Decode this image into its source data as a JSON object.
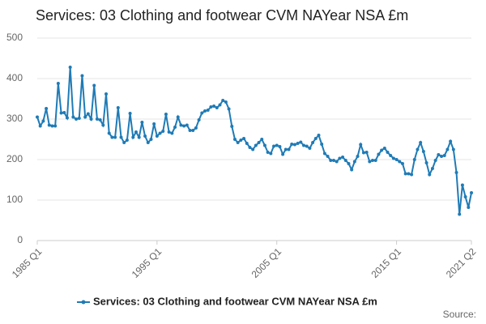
{
  "chart_data": {
    "type": "line",
    "title": "Services: 03 Clothing and footwear CVM NAYear NSA £m",
    "source": "Source:",
    "categories": [
      "1985 Q1",
      null,
      null,
      null,
      null,
      null,
      null,
      null,
      null,
      null,
      null,
      null,
      null,
      null,
      null,
      null,
      null,
      null,
      null,
      null,
      null,
      null,
      null,
      null,
      null,
      null,
      null,
      null,
      null,
      null,
      null,
      null,
      null,
      null,
      null,
      null,
      null,
      null,
      null,
      null,
      "1995 Q1",
      null,
      null,
      null,
      null,
      null,
      null,
      null,
      null,
      null,
      null,
      null,
      null,
      null,
      null,
      null,
      null,
      null,
      null,
      null,
      null,
      null,
      null,
      null,
      null,
      null,
      null,
      null,
      null,
      null,
      null,
      null,
      null,
      null,
      null,
      null,
      null,
      null,
      null,
      null,
      "2005 Q1",
      null,
      null,
      null,
      null,
      null,
      null,
      null,
      null,
      null,
      null,
      null,
      null,
      null,
      null,
      null,
      null,
      null,
      null,
      null,
      null,
      null,
      null,
      null,
      null,
      null,
      null,
      null,
      null,
      null,
      null,
      null,
      null,
      null,
      null,
      null,
      null,
      null,
      null,
      null,
      "2015 Q1",
      null,
      null,
      null,
      null,
      null,
      null,
      null,
      null,
      null,
      null,
      null,
      null,
      null,
      null,
      null,
      null,
      null,
      null,
      null,
      null,
      null,
      null,
      null,
      null,
      "2021 Q2"
    ],
    "series": [
      {
        "name": "Services: 03 Clothing and footwear CVM NAYear NSA £m",
        "color": "#1f7bb6",
        "values": [
          305,
          283,
          295,
          326,
          285,
          283,
          283,
          388,
          315,
          316,
          303,
          428,
          305,
          300,
          302,
          407,
          305,
          313,
          300,
          383,
          300,
          298,
          285,
          362,
          265,
          255,
          255,
          328,
          255,
          242,
          248,
          314,
          255,
          268,
          255,
          292,
          258,
          242,
          250,
          288,
          258,
          265,
          270,
          312,
          268,
          265,
          280,
          305,
          285,
          283,
          285,
          272,
          272,
          278,
          298,
          315,
          320,
          322,
          330,
          332,
          328,
          335,
          346,
          342,
          325,
          282,
          250,
          242,
          248,
          252,
          240,
          230,
          225,
          235,
          242,
          250,
          235,
          218,
          215,
          233,
          235,
          232,
          213,
          225,
          225,
          238,
          237,
          240,
          243,
          235,
          233,
          228,
          242,
          252,
          260,
          238,
          215,
          208,
          198,
          198,
          195,
          203,
          206,
          198,
          190,
          175,
          195,
          208,
          237,
          217,
          218,
          195,
          198,
          198,
          213,
          223,
          228,
          218,
          210,
          203,
          200,
          195,
          190,
          165,
          165,
          163,
          200,
          225,
          242,
          220,
          192,
          163,
          178,
          198,
          212,
          208,
          210,
          225,
          245,
          225,
          168,
          65,
          137,
          108,
          82,
          118
        ]
      }
    ],
    "ylim": [
      0,
      500
    ],
    "yticks": [
      0,
      100,
      200,
      300,
      400,
      500
    ],
    "grid": true
  }
}
